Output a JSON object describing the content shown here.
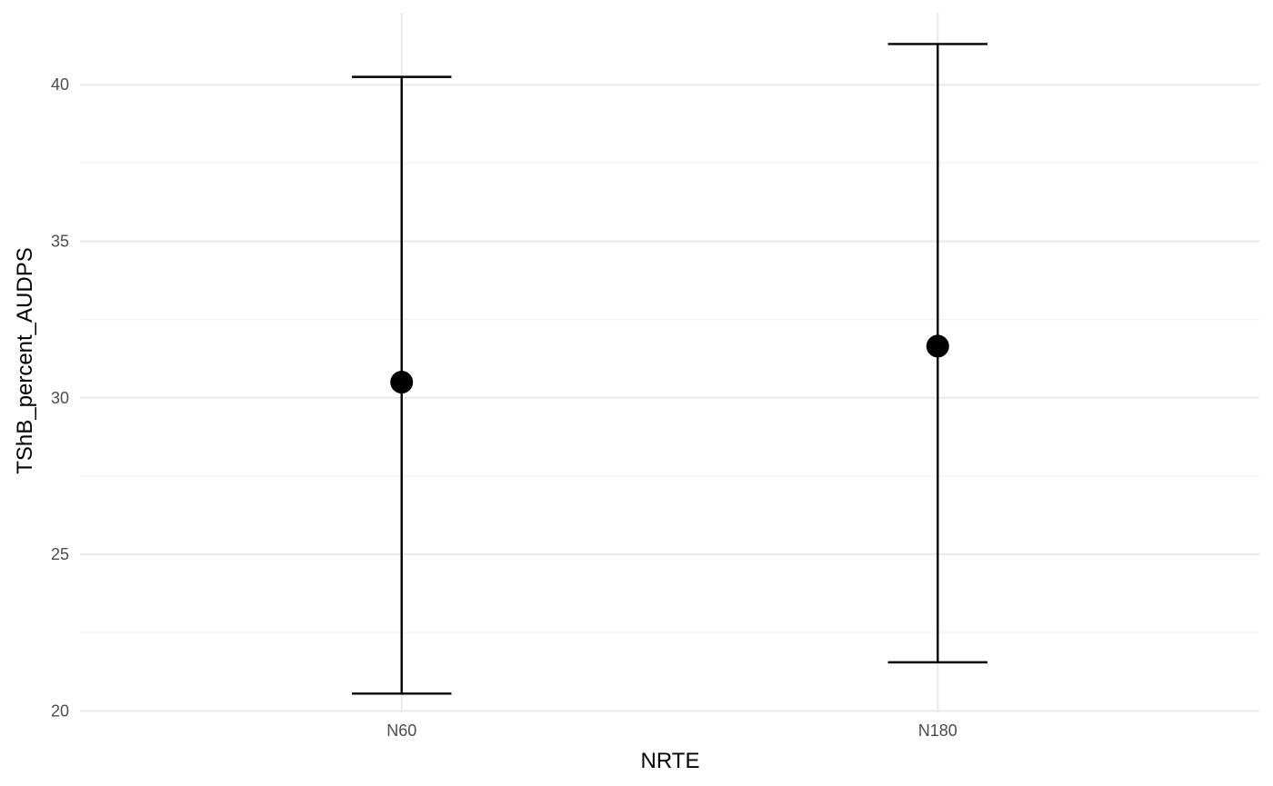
{
  "chart_data": {
    "type": "scatter",
    "subtype": "point-with-errorbars",
    "title": "",
    "xlabel": "NRTE",
    "ylabel": "TShB_percent_AUDPS",
    "categories": [
      "N60",
      "N180"
    ],
    "points": [
      {
        "category": "N60",
        "y": 30.5,
        "ymin": 20.55,
        "ymax": 40.25
      },
      {
        "category": "N180",
        "y": 31.65,
        "ymin": 21.55,
        "ymax": 41.3
      }
    ],
    "ylim": [
      19.95,
      42.3
    ],
    "yticks": [
      20,
      25,
      30,
      35,
      40
    ],
    "ytick_labels": [
      "20",
      "25",
      "30",
      "35",
      "40"
    ],
    "grid": true,
    "legend": "none",
    "colors": {
      "marks": "#000000",
      "grid_major": "#ebebeb",
      "grid_minor": "#f2f2f2",
      "tick_text": "#4d4d4d"
    }
  }
}
